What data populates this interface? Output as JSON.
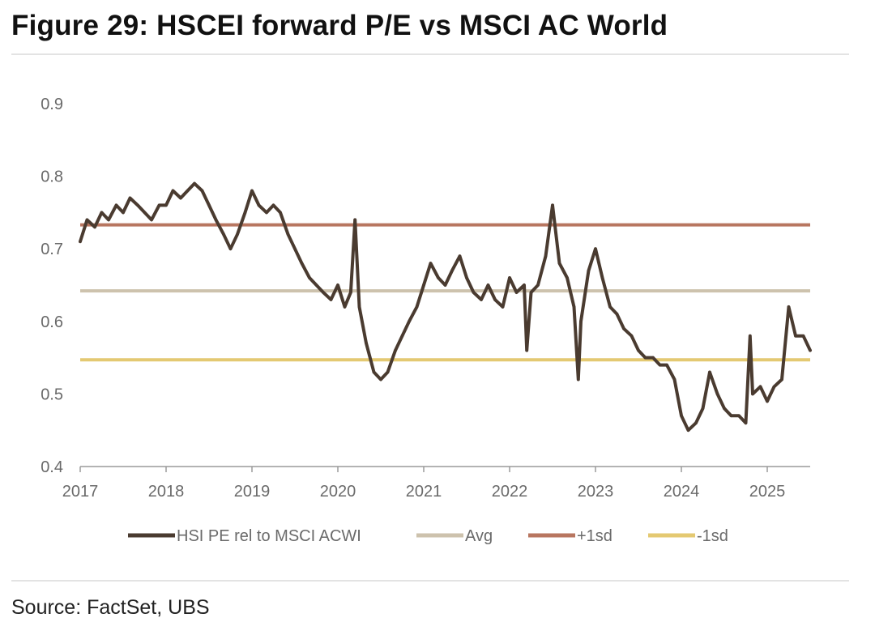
{
  "title": "Figure 29: HSCEI forward P/E vs MSCI AC World",
  "source": "Source: FactSet, UBS",
  "chart_data": {
    "type": "line",
    "title": "",
    "xlabel": "",
    "ylabel": "",
    "ylim": [
      0.4,
      0.9
    ],
    "xlim": [
      2017,
      2025.5
    ],
    "y_ticks": [
      "0.4",
      "0.5",
      "0.6",
      "0.7",
      "0.8",
      "0.9"
    ],
    "x_ticks": [
      "2017",
      "2018",
      "2019",
      "2020",
      "2021",
      "2022",
      "2023",
      "2024",
      "2025"
    ],
    "grid": false,
    "legend_position": "bottom",
    "series": [
      {
        "name": "HSI PE rel to MSCI ACWI",
        "color": "#4a3b30",
        "style": "line",
        "x": [
          2017.0,
          2017.08,
          2017.17,
          2017.25,
          2017.33,
          2017.42,
          2017.5,
          2017.58,
          2017.67,
          2017.75,
          2017.83,
          2017.92,
          2018.0,
          2018.08,
          2018.17,
          2018.25,
          2018.33,
          2018.42,
          2018.5,
          2018.58,
          2018.67,
          2018.75,
          2018.83,
          2018.92,
          2019.0,
          2019.08,
          2019.17,
          2019.25,
          2019.33,
          2019.42,
          2019.5,
          2019.58,
          2019.67,
          2019.75,
          2019.83,
          2019.92,
          2020.0,
          2020.08,
          2020.15,
          2020.2,
          2020.25,
          2020.33,
          2020.42,
          2020.5,
          2020.58,
          2020.67,
          2020.75,
          2020.83,
          2020.92,
          2021.0,
          2021.08,
          2021.17,
          2021.25,
          2021.33,
          2021.42,
          2021.5,
          2021.58,
          2021.67,
          2021.75,
          2021.83,
          2021.92,
          2022.0,
          2022.08,
          2022.17,
          2022.2,
          2022.25,
          2022.33,
          2022.42,
          2022.5,
          2022.58,
          2022.67,
          2022.75,
          2022.8,
          2022.83,
          2022.92,
          2023.0,
          2023.08,
          2023.17,
          2023.25,
          2023.33,
          2023.42,
          2023.5,
          2023.58,
          2023.67,
          2023.75,
          2023.83,
          2023.92,
          2024.0,
          2024.08,
          2024.17,
          2024.25,
          2024.33,
          2024.42,
          2024.5,
          2024.58,
          2024.67,
          2024.75,
          2024.8,
          2024.83,
          2024.92,
          2025.0,
          2025.08,
          2025.17,
          2025.25,
          2025.33,
          2025.42,
          2025.5
        ],
        "values": [
          0.71,
          0.74,
          0.73,
          0.75,
          0.74,
          0.76,
          0.75,
          0.77,
          0.76,
          0.75,
          0.74,
          0.76,
          0.76,
          0.78,
          0.77,
          0.78,
          0.79,
          0.78,
          0.76,
          0.74,
          0.72,
          0.7,
          0.72,
          0.75,
          0.78,
          0.76,
          0.75,
          0.76,
          0.75,
          0.72,
          0.7,
          0.68,
          0.66,
          0.65,
          0.64,
          0.63,
          0.65,
          0.62,
          0.64,
          0.74,
          0.62,
          0.57,
          0.53,
          0.52,
          0.53,
          0.56,
          0.58,
          0.6,
          0.62,
          0.65,
          0.68,
          0.66,
          0.65,
          0.67,
          0.69,
          0.66,
          0.64,
          0.63,
          0.65,
          0.63,
          0.62,
          0.66,
          0.64,
          0.65,
          0.56,
          0.64,
          0.65,
          0.69,
          0.76,
          0.68,
          0.66,
          0.62,
          0.52,
          0.6,
          0.67,
          0.7,
          0.66,
          0.62,
          0.61,
          0.59,
          0.58,
          0.56,
          0.55,
          0.55,
          0.54,
          0.54,
          0.52,
          0.47,
          0.45,
          0.46,
          0.48,
          0.53,
          0.5,
          0.48,
          0.47,
          0.47,
          0.46,
          0.58,
          0.5,
          0.51,
          0.49,
          0.51,
          0.52,
          0.62,
          0.58,
          0.58,
          0.56
        ]
      },
      {
        "name": "Avg",
        "color": "#cdc2ad",
        "style": "hline",
        "value": 0.642
      },
      {
        "name": "+1sd",
        "color": "#b87660",
        "style": "hline",
        "value": 0.733
      },
      {
        "name": "-1sd",
        "color": "#e4c972",
        "style": "hline",
        "value": 0.547
      }
    ]
  }
}
